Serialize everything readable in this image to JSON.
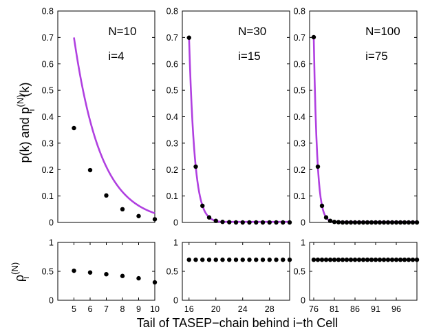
{
  "chart_data": [
    {
      "type": "line",
      "panel": "top-left",
      "annotations": [
        "N=10",
        "i=4"
      ],
      "ylabel": "p(k) and p_i^(N)(k)",
      "ylabel_parts": {
        "main": "p(k) and p",
        "sub": "i",
        "sup": "(N)",
        "tail": "(k)"
      },
      "xlim": [
        4,
        10
      ],
      "ylim": [
        0,
        0.8
      ],
      "xticks": [],
      "yticks": [
        0,
        0.1,
        0.2,
        0.3,
        0.4,
        0.5,
        0.6,
        0.7,
        0.8
      ],
      "ytick_labels": [
        "0",
        "0.1",
        "0.2",
        "0.3",
        "0.4",
        "0.5",
        "0.6",
        "0.7",
        "0.8"
      ],
      "curve_color": "#b040e0",
      "curve": {
        "x0": 5,
        "x1": 10,
        "y0": 0.7,
        "decay": 0.6,
        "floor": 0.003
      },
      "points": {
        "x": [
          5,
          6,
          7,
          8,
          9,
          10
        ],
        "y": [
          0.357,
          0.198,
          0.102,
          0.05,
          0.024,
          0.012
        ]
      }
    },
    {
      "type": "line",
      "panel": "top-middle",
      "annotations": [
        "N=30",
        "i=15"
      ],
      "xlim": [
        15,
        31
      ],
      "ylim": [
        0,
        0.8
      ],
      "xticks": [],
      "yticks": [
        0,
        0.1,
        0.2,
        0.3,
        0.4,
        0.5,
        0.6,
        0.7,
        0.8
      ],
      "ytick_labels": [
        "0",
        "0.1",
        "0.2",
        "0.3",
        "0.4",
        "0.5",
        "0.6",
        "0.7",
        "0.8"
      ],
      "curve_color": "#b040e0",
      "curve": {
        "x0": 16,
        "x1": 31,
        "y0": 0.7,
        "decay": 1.2,
        "floor": 0.002
      },
      "points": {
        "x": [
          16,
          17,
          18,
          19,
          20,
          21,
          22,
          23,
          24,
          25,
          26,
          27,
          28,
          29,
          30,
          31
        ],
        "y": [
          0.699,
          0.211,
          0.063,
          0.019,
          0.006,
          0.002,
          0.001,
          0.0,
          0.0,
          0.0,
          0.0,
          0.0,
          0.0,
          0.0,
          0.0,
          0.0
        ]
      }
    },
    {
      "type": "line",
      "panel": "top-right",
      "annotations": [
        "N=100",
        "i=75"
      ],
      "xlim": [
        75,
        101
      ],
      "ylim": [
        0,
        0.8
      ],
      "xticks": [],
      "yticks": [
        0,
        0.1,
        0.2,
        0.3,
        0.4,
        0.5,
        0.6,
        0.7,
        0.8
      ],
      "ytick_labels": [
        "0",
        "0.1",
        "0.2",
        "0.3",
        "0.4",
        "0.5",
        "0.6",
        "0.7",
        "0.8"
      ],
      "curve_color": "#b040e0",
      "curve": {
        "x0": 76,
        "x1": 101,
        "y0": 0.7,
        "decay": 1.2,
        "floor": 0.002
      },
      "points": {
        "x": [
          76,
          77,
          78,
          79,
          80,
          81,
          82,
          83,
          84,
          85,
          86,
          87,
          88,
          89,
          90,
          91,
          92,
          93,
          94,
          95,
          96,
          97,
          98,
          99,
          100,
          101
        ],
        "y": [
          0.701,
          0.211,
          0.063,
          0.019,
          0.006,
          0.002,
          0.001,
          0.0,
          0.0,
          0.0,
          0.0,
          0.0,
          0.0,
          0.0,
          0.0,
          0.0,
          0.0,
          0.0,
          0.0,
          0.0,
          0.0,
          0.0,
          0.0,
          0.0,
          0.0,
          0.0
        ]
      }
    },
    {
      "type": "scatter",
      "panel": "bottom-left",
      "ylabel": "rho_i^(N)",
      "ylabel_parts": {
        "main": "ρ",
        "sub": "i",
        "sup": "(N)"
      },
      "xlim": [
        4,
        10
      ],
      "ylim": [
        0,
        1
      ],
      "xticks": [
        5,
        6,
        7,
        8,
        9,
        10
      ],
      "xtick_labels": [
        "5",
        "6",
        "7",
        "8",
        "9",
        "10"
      ],
      "yticks": [
        0,
        0.5,
        1
      ],
      "ytick_labels": [
        "0",
        "0.5",
        "1"
      ],
      "points": {
        "x": [
          5,
          6,
          7,
          8,
          9,
          10
        ],
        "y": [
          0.51,
          0.48,
          0.45,
          0.42,
          0.38,
          0.31
        ]
      }
    },
    {
      "type": "scatter",
      "panel": "bottom-middle",
      "xlim": [
        15,
        31
      ],
      "ylim": [
        0,
        1
      ],
      "xticks": [
        16,
        20,
        24,
        28
      ],
      "xtick_labels": [
        "16",
        "20",
        "24",
        "28"
      ],
      "yticks": [
        0,
        0.5,
        1
      ],
      "ytick_labels": [
        "0",
        "0.5",
        "1"
      ],
      "points": {
        "x": [
          16,
          17,
          18,
          19,
          20,
          21,
          22,
          23,
          24,
          25,
          26,
          27,
          28,
          29,
          30,
          31
        ],
        "y": [
          0.7,
          0.7,
          0.7,
          0.7,
          0.7,
          0.7,
          0.7,
          0.7,
          0.7,
          0.7,
          0.7,
          0.7,
          0.7,
          0.7,
          0.7,
          0.7
        ]
      }
    },
    {
      "type": "scatter",
      "panel": "bottom-right",
      "xlim": [
        75,
        101
      ],
      "ylim": [
        0,
        1
      ],
      "xticks": [
        76,
        81,
        86,
        91,
        96
      ],
      "xtick_labels": [
        "76",
        "81",
        "86",
        "91",
        "96"
      ],
      "yticks": [
        0,
        0.5,
        1
      ],
      "ytick_labels": [
        "0",
        "0.5",
        "1"
      ],
      "points": {
        "x": [
          76,
          77,
          78,
          79,
          80,
          81,
          82,
          83,
          84,
          85,
          86,
          87,
          88,
          89,
          90,
          91,
          92,
          93,
          94,
          95,
          96,
          97,
          98,
          99,
          100,
          101
        ],
        "y": [
          0.7,
          0.7,
          0.7,
          0.7,
          0.7,
          0.7,
          0.7,
          0.7,
          0.7,
          0.7,
          0.7,
          0.7,
          0.7,
          0.7,
          0.7,
          0.7,
          0.7,
          0.7,
          0.7,
          0.7,
          0.7,
          0.7,
          0.7,
          0.7,
          0.7,
          0.7
        ]
      }
    }
  ],
  "figure": {
    "xlabel": "Tail of TASEP−chain behind i−th Cell"
  }
}
